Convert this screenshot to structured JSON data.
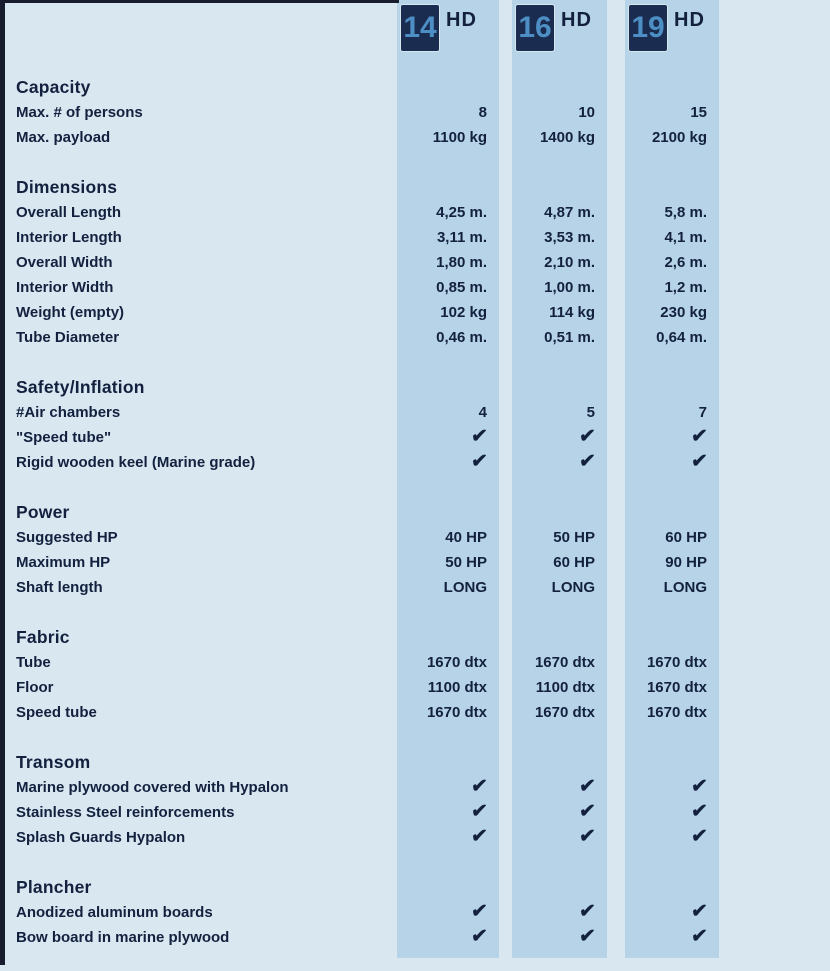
{
  "page": {
    "background": "#d9e7f1",
    "band_color": "#b6d3e7",
    "text_color": "#13213f",
    "badge_bg": "#1a2c50",
    "badge_number_color": "#4d8fc4",
    "border_color": "#181d2e"
  },
  "check_glyph": "✔",
  "columns": [
    {
      "badge_number": "14",
      "badge_suffix": "HD"
    },
    {
      "badge_number": "16",
      "badge_suffix": "HD"
    },
    {
      "badge_number": "19",
      "badge_suffix": "HD"
    }
  ],
  "sections": [
    {
      "title": "Capacity",
      "rows": [
        {
          "label": "Max. # of persons",
          "values": [
            "8",
            "10",
            "15"
          ]
        },
        {
          "label": "Max. payload",
          "values": [
            "1100 kg",
            "1400 kg",
            "2100 kg"
          ]
        }
      ]
    },
    {
      "title": "Dimensions",
      "rows": [
        {
          "label": "Overall Length",
          "values": [
            "4,25 m.",
            "4,87 m.",
            "5,8 m."
          ]
        },
        {
          "label": "Interior Length",
          "values": [
            "3,11 m.",
            "3,53 m.",
            "4,1 m."
          ]
        },
        {
          "label": "Overall Width",
          "values": [
            "1,80 m.",
            "2,10 m.",
            "2,6 m."
          ]
        },
        {
          "label": "Interior Width",
          "values": [
            "0,85 m.",
            "1,00 m.",
            "1,2 m."
          ]
        },
        {
          "label": "Weight (empty)",
          "values": [
            "102 kg",
            "114 kg",
            "230 kg"
          ]
        },
        {
          "label": "Tube Diameter",
          "values": [
            "0,46 m.",
            "0,51 m.",
            "0,64 m."
          ]
        }
      ]
    },
    {
      "title": "Safety/Inflation",
      "rows": [
        {
          "label": "#Air chambers",
          "values": [
            "4",
            "5",
            "7"
          ]
        },
        {
          "label": "\"Speed tube\"",
          "values": [
            "✔",
            "✔",
            "✔"
          ]
        },
        {
          "label": "Rigid wooden keel (Marine grade)",
          "values": [
            "✔",
            "✔",
            "✔"
          ]
        }
      ]
    },
    {
      "title": "Power",
      "rows": [
        {
          "label": "Suggested HP",
          "values": [
            "40 HP",
            "50 HP",
            "60 HP"
          ]
        },
        {
          "label": "Maximum HP",
          "values": [
            "50 HP",
            "60 HP",
            "90 HP"
          ]
        },
        {
          "label": "Shaft length",
          "values": [
            "LONG",
            "LONG",
            "LONG"
          ]
        }
      ]
    },
    {
      "title": "Fabric",
      "rows": [
        {
          "label": "Tube",
          "values": [
            "1670 dtx",
            "1670 dtx",
            "1670 dtx"
          ]
        },
        {
          "label": "Floor",
          "values": [
            "1100 dtx",
            "1100 dtx",
            "1670 dtx"
          ]
        },
        {
          "label": "Speed tube",
          "values": [
            "1670 dtx",
            "1670 dtx",
            "1670 dtx"
          ]
        }
      ]
    },
    {
      "title": "Transom",
      "rows": [
        {
          "label": "Marine plywood covered with Hypalon",
          "values": [
            "✔",
            "✔",
            "✔"
          ]
        },
        {
          "label": "Stainless Steel reinforcements",
          "values": [
            "✔",
            "✔",
            "✔"
          ]
        },
        {
          "label": "Splash Guards Hypalon",
          "values": [
            "✔",
            "✔",
            "✔"
          ]
        }
      ]
    },
    {
      "title": "Plancher",
      "rows": [
        {
          "label": "Anodized aluminum boards",
          "values": [
            "✔",
            "✔",
            "✔"
          ]
        },
        {
          "label": "Bow board in marine plywood",
          "values": [
            "✔",
            "✔",
            "✔"
          ]
        }
      ]
    }
  ]
}
